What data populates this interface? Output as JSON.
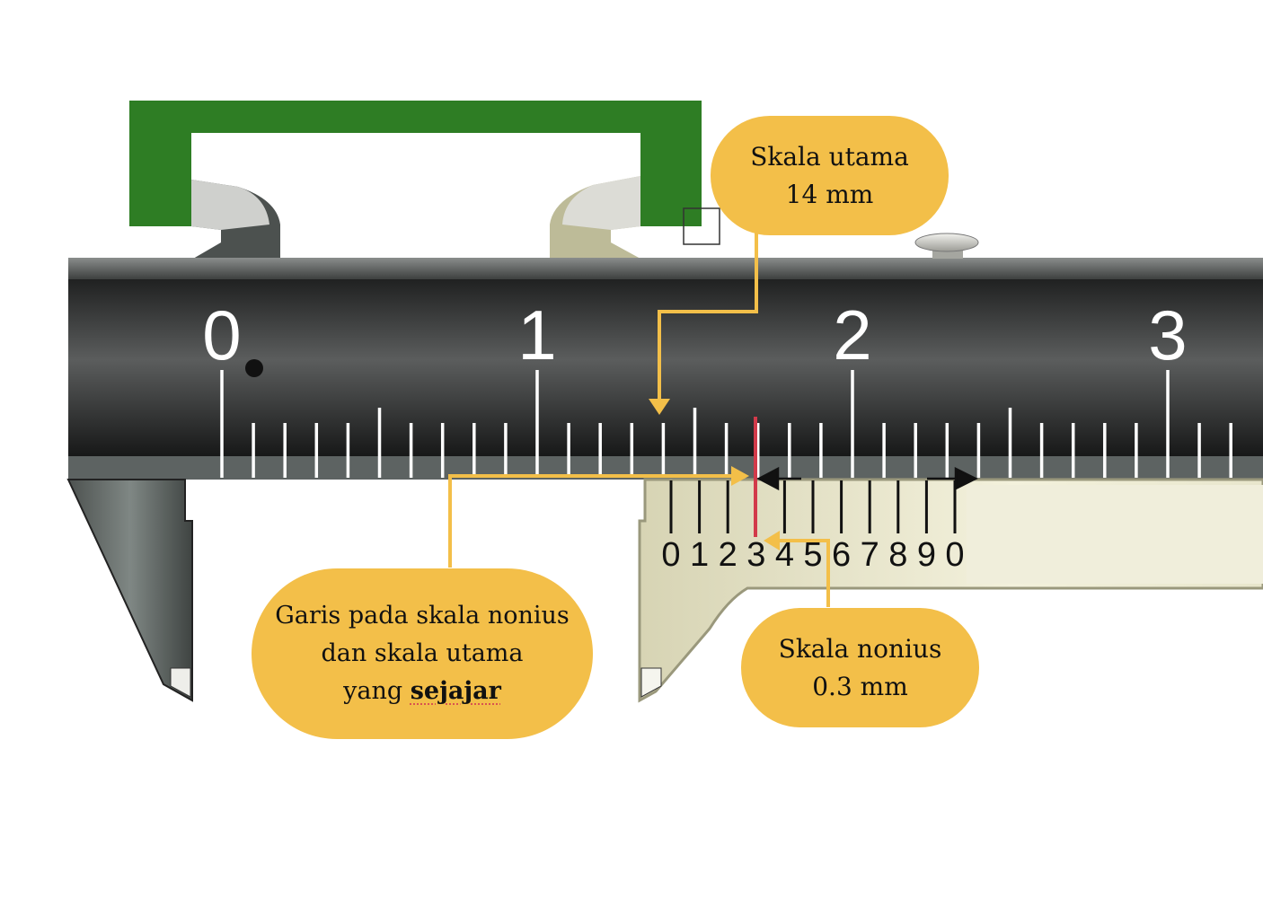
{
  "main_scale": {
    "labels": [
      "0",
      "1",
      "2",
      "3"
    ]
  },
  "vernier_scale": {
    "labels": [
      "0",
      "1",
      "2",
      "3",
      "4",
      "5",
      "6",
      "7",
      "8",
      "9",
      "0"
    ],
    "aligned_index": 3
  },
  "callouts": {
    "main_scale": {
      "line1": "Skala utama",
      "line2": "14 mm"
    },
    "vernier": {
      "line1": "Skala nonius",
      "line2": "0.3 mm"
    },
    "parallel": {
      "line1": "Garis pada skala nonius",
      "line2": "dan skala utama",
      "line3_prefix": "yang ",
      "line3_bold": "sejajar"
    }
  },
  "colors": {
    "callout_fill": "#f3bf49",
    "arrow": "#f3bf49",
    "aligned_line": "#d23a4a",
    "object_green": "#2e7d24",
    "beam_dark": "#3a3b3b",
    "vernier_body": "#e9e7cf"
  }
}
